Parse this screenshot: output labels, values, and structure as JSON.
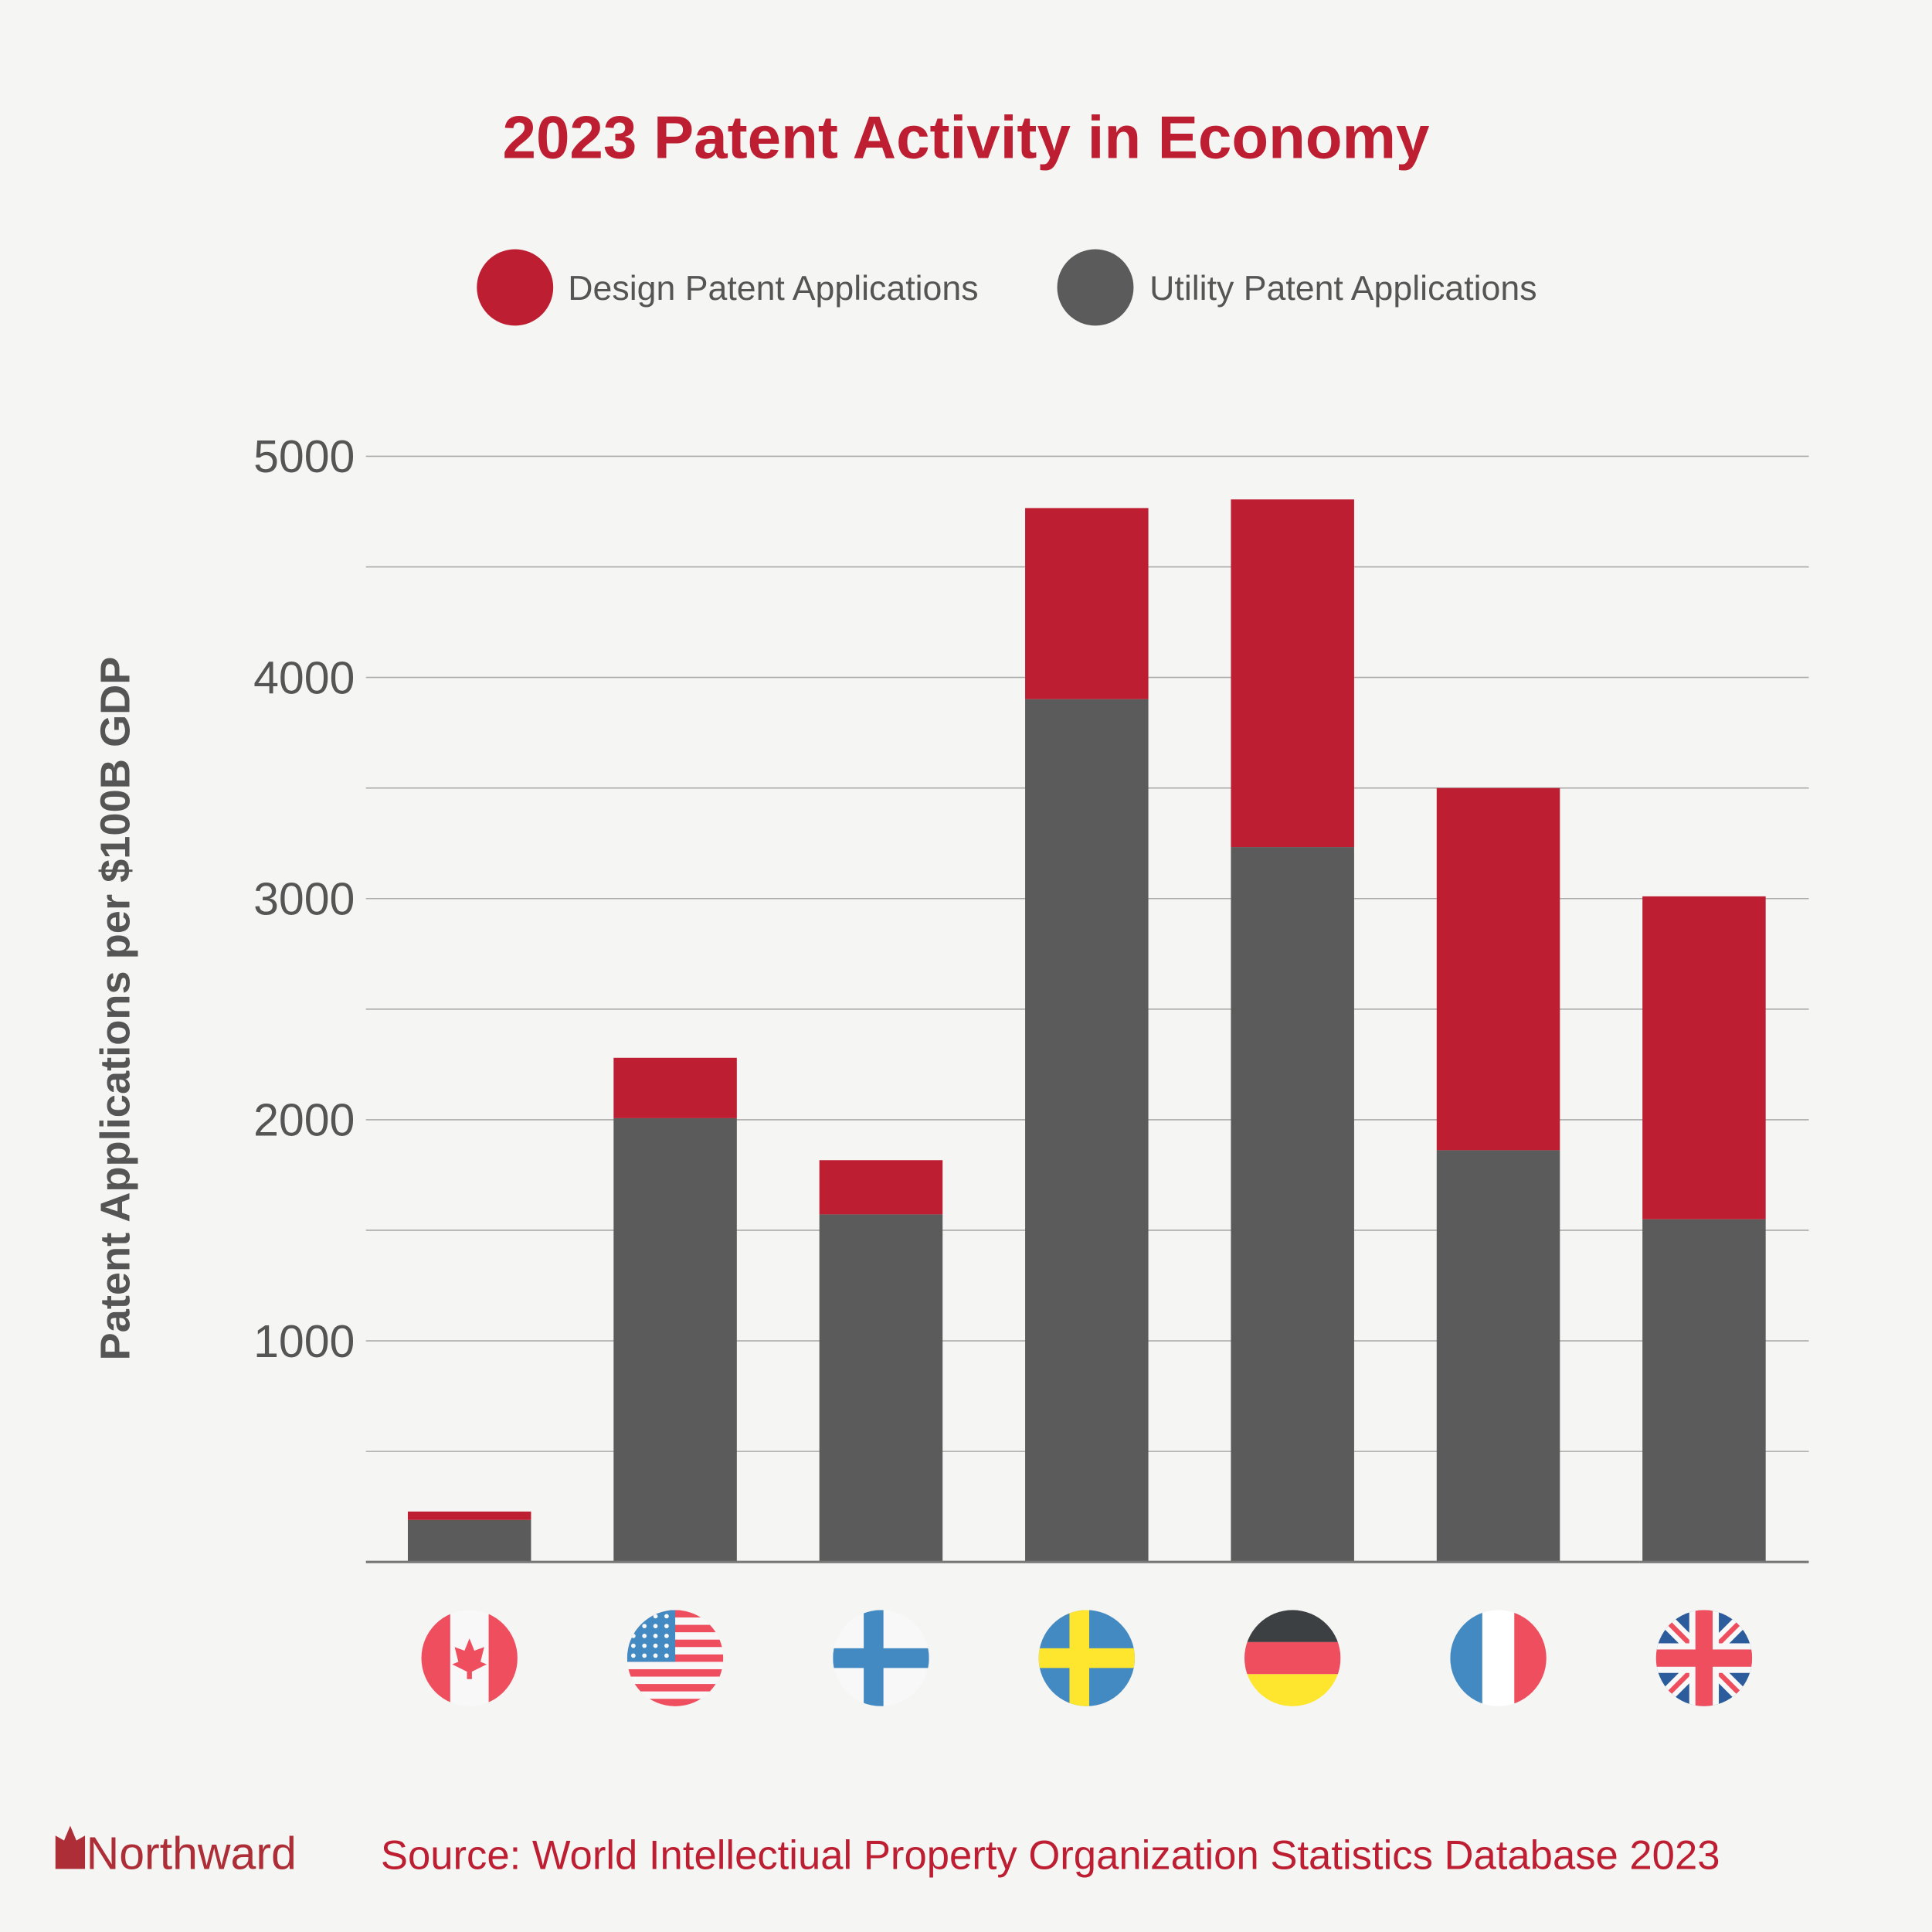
{
  "colors": {
    "design": "#be1e32",
    "utility": "#5b5b5b",
    "title": "#be1e32",
    "text": "#555555",
    "background": "#f5f5f3"
  },
  "logo": {
    "text": "Northward"
  },
  "source": "Source: World Intellectiual Property Organization Statistics Database 2023",
  "chart_data": {
    "type": "bar",
    "stacked": true,
    "title": "2023 Patent Activity in Economy",
    "xlabel": "",
    "ylabel": "Patent Applications per $100B GDP",
    "ylim": [
      0,
      5000
    ],
    "yticks": [
      1000,
      2000,
      3000,
      4000,
      5000
    ],
    "grid_step": 500,
    "grid": true,
    "legend_position": "top-center",
    "categories": [
      "Canada",
      "United States",
      "Finland",
      "Sweden",
      "Germany",
      "France",
      "United Kingdom"
    ],
    "category_icons": [
      "canada-flag-icon",
      "usa-flag-icon",
      "finland-flag-icon",
      "sweden-flag-icon",
      "germany-flag-icon",
      "france-flag-icon",
      "uk-flag-icon"
    ],
    "series": [
      {
        "name": "Utility Patent Applications",
        "values": [
          190,
          2007,
          1572,
          3902,
          3233,
          1862,
          1550
        ]
      },
      {
        "name": "Design Patent Applications",
        "values": [
          38,
          273,
          245,
          864,
          1572,
          1638,
          1460
        ]
      }
    ],
    "legend": [
      "Design Patent Applications",
      "Utility Patent Applications"
    ]
  }
}
